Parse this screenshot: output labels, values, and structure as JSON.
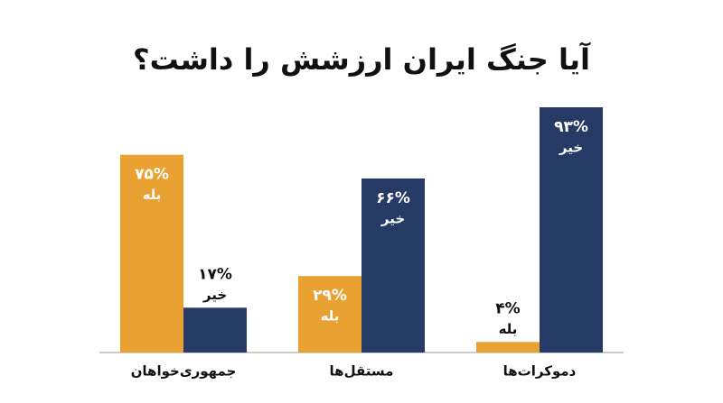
{
  "chart_data": {
    "type": "bar",
    "title": "آیا جنگ ایران ارزشش را داشت؟",
    "categories": [
      "جمهوری‌خواهان",
      "مستقل‌ها",
      "دموکرات‌ها"
    ],
    "series": [
      {
        "name": "بله",
        "color": "#E9A132",
        "values": [
          75,
          29,
          4
        ],
        "value_labels": [
          "۷۵%",
          "۲۹%",
          "۴%"
        ]
      },
      {
        "name": "خیر",
        "color": "#263A66",
        "values": [
          17,
          66,
          93
        ],
        "value_labels": [
          "۱۷%",
          "۶۶%",
          "۹۳%"
        ]
      }
    ]
  }
}
